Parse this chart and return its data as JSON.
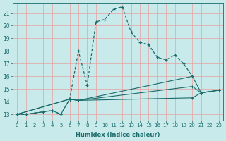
{
  "xlabel": "Humidex (Indice chaleur)",
  "bg_color": "#c8eaea",
  "grid_color": "#e8a0a0",
  "line_color": "#1a6b6b",
  "xlim": [
    -0.5,
    23.5
  ],
  "ylim": [
    12.5,
    21.8
  ],
  "xticks": [
    0,
    1,
    2,
    3,
    4,
    5,
    6,
    7,
    8,
    9,
    10,
    11,
    12,
    13,
    14,
    15,
    16,
    17,
    18,
    19,
    20,
    21,
    22,
    23
  ],
  "yticks": [
    13,
    14,
    15,
    16,
    17,
    18,
    19,
    20,
    21
  ],
  "line_main": {
    "x": [
      0,
      1,
      2,
      3,
      4,
      5,
      6,
      7,
      8,
      9,
      10,
      11,
      12,
      13,
      14,
      15,
      16,
      17,
      18,
      19,
      20
    ],
    "y": [
      13,
      13,
      13.1,
      13.2,
      13.3,
      13.0,
      14.2,
      18.0,
      15.3,
      20.3,
      20.5,
      21.3,
      21.5,
      19.5,
      18.7,
      18.5,
      17.5,
      17.3,
      17.7,
      17.0,
      16.0
    ]
  },
  "line_flat1": {
    "x": [
      0,
      1,
      2,
      3,
      4,
      5,
      6,
      7,
      20,
      21,
      22,
      23
    ],
    "y": [
      13,
      13,
      13.1,
      13.2,
      13.3,
      13.0,
      14.2,
      14.1,
      16.0,
      14.7,
      14.8,
      14.9
    ]
  },
  "line_flat2": {
    "x": [
      0,
      6,
      7,
      20,
      21,
      22,
      23
    ],
    "y": [
      13,
      14.2,
      14.1,
      15.2,
      14.7,
      14.8,
      14.9
    ]
  },
  "line_flat3": {
    "x": [
      0,
      6,
      7,
      20,
      21,
      22,
      23
    ],
    "y": [
      13,
      14.2,
      14.1,
      14.3,
      14.7,
      14.8,
      14.9
    ]
  }
}
